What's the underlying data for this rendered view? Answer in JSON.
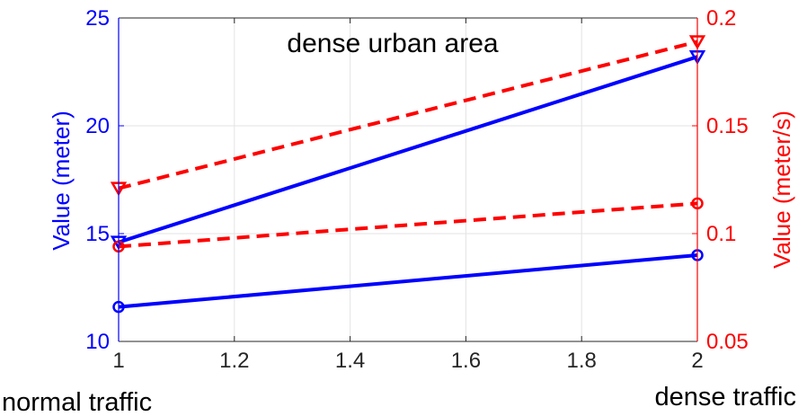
{
  "chart_data": {
    "type": "line",
    "title": "dense urban area",
    "x": [
      1,
      2
    ],
    "xlim": [
      1,
      2
    ],
    "xticks": [
      "1",
      "1.2",
      "1.4",
      "1.6",
      "1.8",
      "2"
    ],
    "x_annotations": {
      "left": "normal traffic",
      "right": "dense traffic"
    },
    "grid": true,
    "left_axis": {
      "label": "Value (meter)",
      "color": "#0000ff",
      "ylim": [
        10,
        25
      ],
      "ticks": [
        "10",
        "15",
        "20",
        "25"
      ]
    },
    "right_axis": {
      "label": "Value (meter/s)",
      "color": "#ff0000",
      "ylim": [
        0.05,
        0.2
      ],
      "ticks": [
        "0.05",
        "0.1",
        "0.15",
        "0.2"
      ]
    },
    "series": [
      {
        "axis": "left",
        "color": "#0000ff",
        "line_style": "solid",
        "marker": "triangle-down",
        "values": [
          14.6,
          23.2
        ]
      },
      {
        "axis": "left",
        "color": "#0000ff",
        "line_style": "solid",
        "marker": "circle",
        "values": [
          11.6,
          14.0
        ]
      },
      {
        "axis": "right",
        "color": "#ff0000",
        "line_style": "dashed",
        "marker": "triangle-down",
        "values": [
          0.121,
          0.189
        ]
      },
      {
        "axis": "right",
        "color": "#ff0000",
        "line_style": "dashed",
        "marker": "circle",
        "values": [
          0.094,
          0.114
        ]
      }
    ]
  }
}
